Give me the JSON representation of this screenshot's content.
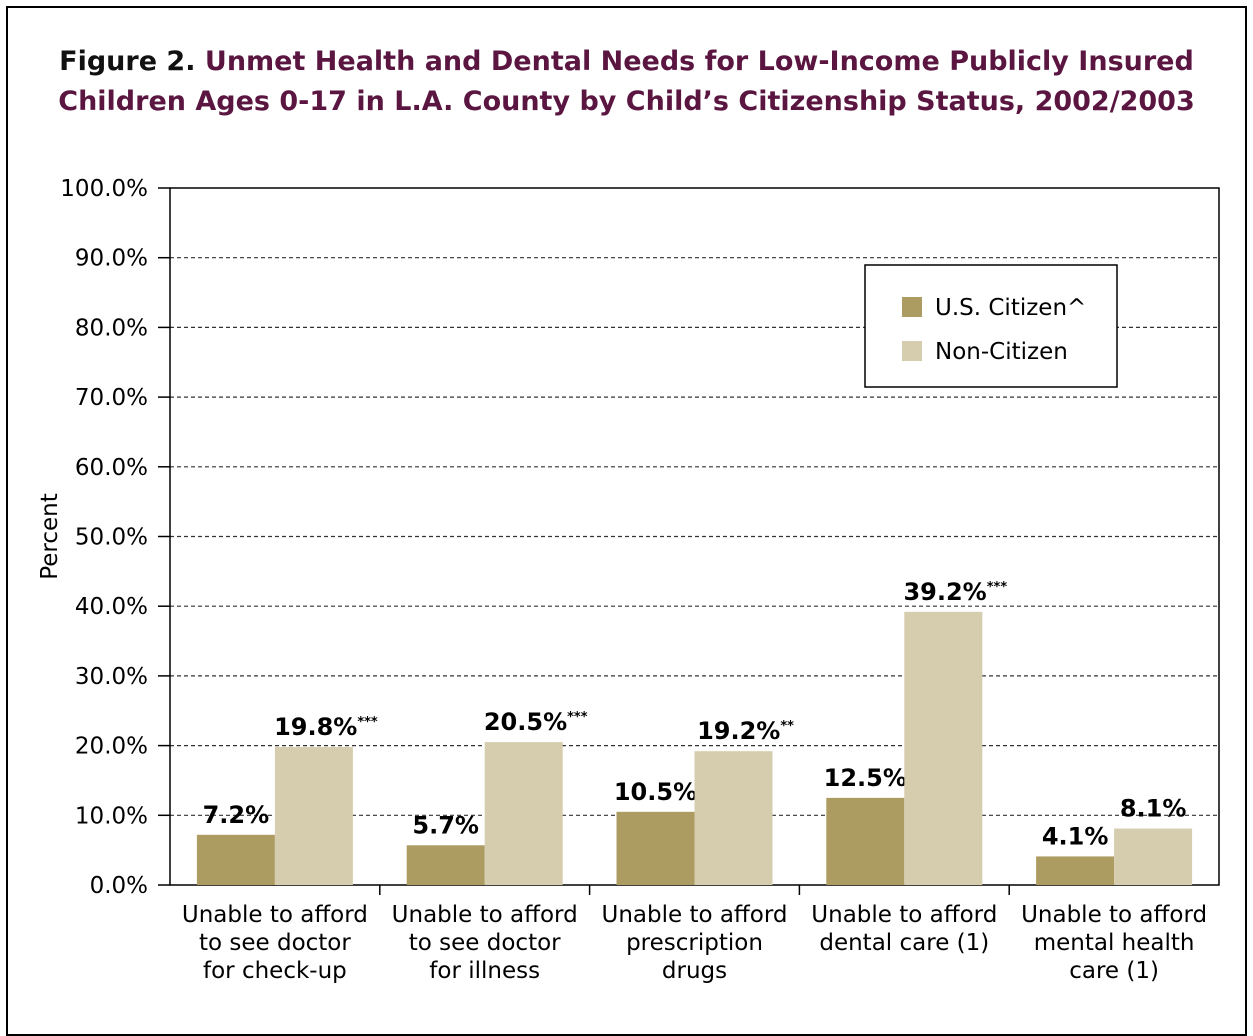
{
  "figure": {
    "label": "Figure 2.",
    "title_line1": "Unmet Health and Dental Needs for Low-Income Publicly Insured",
    "title_line2": "Children Ages 0-17 in L.A. County by Child’s Citizenship Status, 2002/2003"
  },
  "colors": {
    "us_citizen": "#ad9c62",
    "non_citizen": "#d5cdad",
    "title": "#5a1640"
  },
  "chart_data": {
    "type": "bar",
    "title": "Unmet Health and Dental Needs for Low-Income Publicly Insured Children Ages 0-17 in L.A. County by Child’s Citizenship Status, 2002/2003",
    "ylabel": "Percent",
    "xlabel": "",
    "ylim": [
      0,
      100
    ],
    "yticks": [
      "0.0%",
      "10.0%",
      "20.0%",
      "30.0%",
      "40.0%",
      "50.0%",
      "60.0%",
      "70.0%",
      "80.0%",
      "90.0%",
      "100.0%"
    ],
    "grid": "horizontal dashed",
    "legend_position": "top-right",
    "categories": [
      [
        "Unable to afford",
        "to see doctor",
        "for check-up"
      ],
      [
        "Unable to afford",
        "to see doctor",
        "for illness"
      ],
      [
        "Unable to afford",
        "prescription",
        "drugs"
      ],
      [
        "Unable to afford",
        "dental care (1)"
      ],
      [
        "Unable to afford",
        "mental health",
        "care (1)"
      ]
    ],
    "series": [
      {
        "name": "U.S. Citizen^",
        "values": [
          7.2,
          5.7,
          10.5,
          12.5,
          4.1
        ],
        "labels": [
          "7.2%",
          "5.7%",
          "10.5%",
          "12.5%",
          "4.1%"
        ],
        "marks": [
          "",
          "",
          "",
          "",
          ""
        ]
      },
      {
        "name": "Non-Citizen",
        "values": [
          19.8,
          20.5,
          19.2,
          39.2,
          8.1
        ],
        "labels": [
          "19.8%",
          "20.5%",
          "19.2%",
          "39.2%",
          "8.1%"
        ],
        "marks": [
          "***",
          "***",
          "**",
          "***",
          ""
        ]
      }
    ]
  }
}
